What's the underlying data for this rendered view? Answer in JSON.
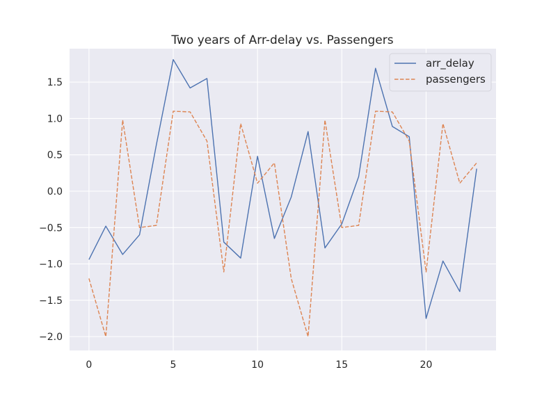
{
  "chart_data": {
    "type": "line",
    "title": "Two years of Arr-delay vs. Passengers",
    "xlabel": "",
    "ylabel": "",
    "x": [
      0,
      1,
      2,
      3,
      4,
      5,
      6,
      7,
      8,
      9,
      10,
      11,
      12,
      13,
      14,
      15,
      16,
      17,
      18,
      19,
      20,
      21,
      22,
      23
    ],
    "xlim": [
      -1.15,
      24.15
    ],
    "ylim": [
      -2.19,
      1.96
    ],
    "x_ticks": [
      0,
      5,
      10,
      15,
      20
    ],
    "y_ticks": [
      -2.0,
      -1.5,
      -1.0,
      -0.5,
      0.0,
      0.5,
      1.0,
      1.5
    ],
    "grid": true,
    "legend_position": "top-right",
    "series": [
      {
        "name": "arr_delay",
        "color": "#4c72b0",
        "line_style": "solid",
        "values": [
          -0.94,
          -0.48,
          -0.87,
          -0.6,
          0.64,
          1.81,
          1.42,
          1.55,
          -0.7,
          -0.92,
          0.48,
          -0.65,
          -0.08,
          0.82,
          -0.78,
          -0.45,
          0.2,
          1.69,
          0.89,
          0.75,
          -1.75,
          -0.96,
          -1.38,
          0.31
        ]
      },
      {
        "name": "passengers",
        "color": "#dd8452",
        "line_style": "dashed",
        "values": [
          -1.2,
          -2.0,
          0.98,
          -0.5,
          -0.47,
          1.1,
          1.09,
          0.69,
          -1.11,
          0.93,
          0.11,
          0.39,
          -1.2,
          -2.0,
          0.98,
          -0.5,
          -0.47,
          1.1,
          1.09,
          0.69,
          -1.11,
          0.93,
          0.11,
          0.39
        ]
      }
    ]
  }
}
